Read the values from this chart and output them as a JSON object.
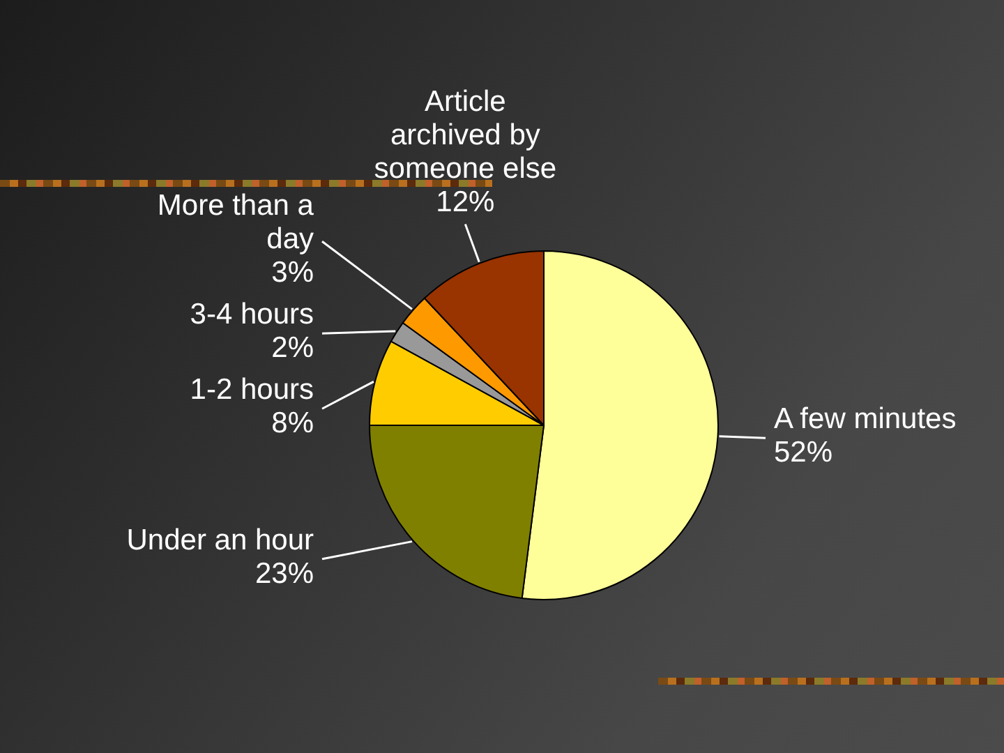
{
  "chart_data": {
    "type": "pie",
    "categories": [
      "A few minutes",
      "Under an hour",
      "1-2 hours",
      "3-4 hours",
      "More than a day",
      "Article archived by someone else"
    ],
    "values": [
      52,
      23,
      8,
      2,
      3,
      12
    ],
    "colors": [
      "#ffff99",
      "#808000",
      "#ffcc00",
      "#999999",
      "#ff9900",
      "#993300"
    ],
    "value_labels": [
      "52%",
      "23%",
      "8%",
      "2%",
      "3%",
      "12%"
    ]
  }
}
